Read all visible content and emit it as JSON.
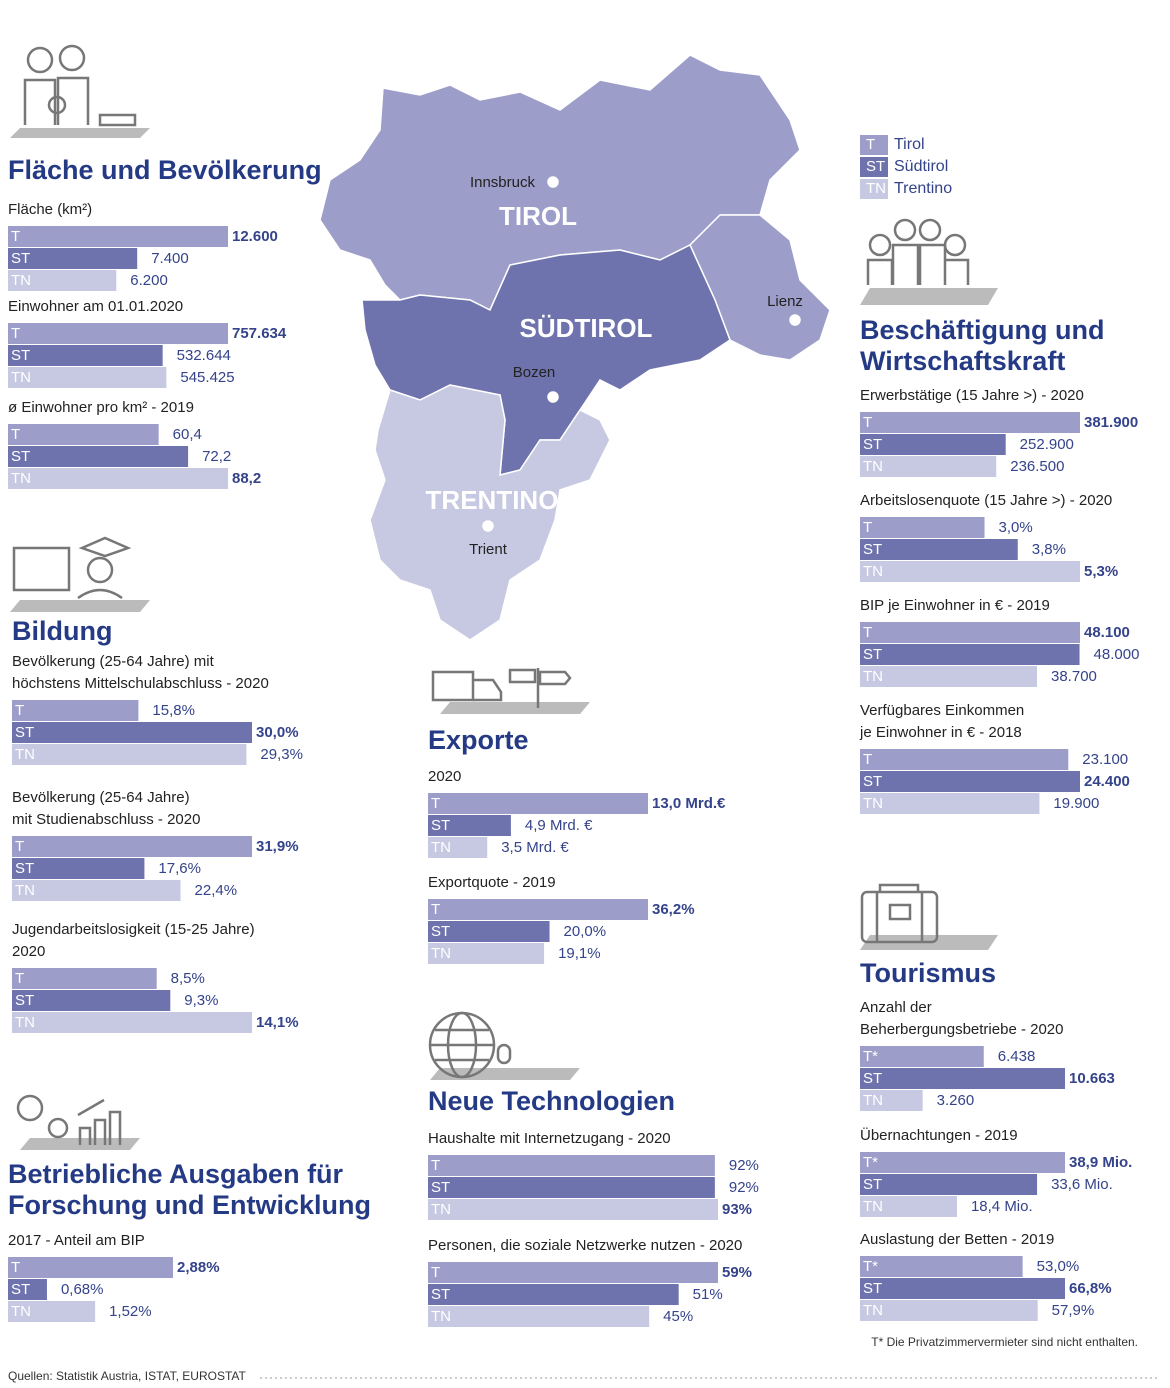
{
  "legend": [
    {
      "code": "T",
      "name": "Tirol"
    },
    {
      "code": "ST",
      "name": "Südtirol"
    },
    {
      "code": "TN",
      "name": "Trentino"
    }
  ],
  "colors": [
    "#9c9ec9",
    "#6f73ad",
    "#c7c8e1"
  ],
  "map": {
    "regions": [
      "TIROL",
      "SÜDTIROL",
      "TRENTINO"
    ],
    "cities": [
      "Innsbruck",
      "Lienz",
      "Bozen",
      "Trient"
    ]
  },
  "sections": [
    {
      "title": [
        "Fläche und Bevölkerung"
      ],
      "charts": [
        {
          "label": [
            "Fläche (km²)"
          ],
          "categories": [
            "T",
            "ST",
            "TN"
          ],
          "values": [
            12600,
            7400,
            6200
          ],
          "value_labels": [
            "12.600",
            "7.400",
            "6.200"
          ]
        },
        {
          "label": [
            "Einwohner am 01.01.2020"
          ],
          "categories": [
            "T",
            "ST",
            "TN"
          ],
          "values": [
            757634,
            532644,
            545425
          ],
          "value_labels": [
            "757.634",
            "532.644",
            "545.425"
          ]
        },
        {
          "label": [
            "ø Einwohner pro km² - 2019"
          ],
          "categories": [
            "T",
            "ST",
            "TN"
          ],
          "values": [
            60.4,
            72.2,
            88.2
          ],
          "value_labels": [
            "60,4",
            "72,2",
            "88,2"
          ]
        }
      ]
    },
    {
      "title": [
        "Bildung"
      ],
      "charts": [
        {
          "label": [
            "Bevölkerung (25-64 Jahre) mit",
            "höchstens Mittelschulabschluss - 2020"
          ],
          "categories": [
            "T",
            "ST",
            "TN"
          ],
          "values": [
            15.8,
            30.0,
            29.3
          ],
          "value_labels": [
            "15,8%",
            "30,0%",
            "29,3%"
          ]
        },
        {
          "label": [
            "Bevölkerung (25-64 Jahre)",
            "mit Studienabschluss  - 2020"
          ],
          "categories": [
            "T",
            "ST",
            "TN"
          ],
          "values": [
            31.9,
            17.6,
            22.4
          ],
          "value_labels": [
            "31,9%",
            "17,6%",
            "22,4%"
          ]
        },
        {
          "label": [
            "Jugendarbeitslosigkeit (15-25 Jahre)",
            "2020"
          ],
          "categories": [
            "T",
            "ST",
            "TN"
          ],
          "values": [
            8.5,
            9.3,
            14.1
          ],
          "value_labels": [
            "8,5%",
            "9,3%",
            "14,1%"
          ]
        }
      ]
    },
    {
      "title": [
        "Betriebliche Ausgaben für",
        "Forschung und Entwicklung"
      ],
      "charts": [
        {
          "label": [
            "2017 - Anteil am BIP"
          ],
          "categories": [
            "T",
            "ST",
            "TN"
          ],
          "values": [
            2.88,
            0.68,
            1.52
          ],
          "value_labels": [
            "2,88%",
            "0,68%",
            "1,52%"
          ]
        }
      ]
    },
    {
      "title": [
        "Exporte"
      ],
      "charts": [
        {
          "label": [
            "2020"
          ],
          "categories": [
            "T",
            "ST",
            "TN"
          ],
          "values": [
            13.0,
            4.9,
            3.5
          ],
          "value_labels": [
            "13,0 Mrd.€",
            "4,9 Mrd. €",
            "3,5 Mrd. €"
          ]
        },
        {
          "label": [
            "Exportquote - 2019"
          ],
          "categories": [
            "T",
            "ST",
            "TN"
          ],
          "values": [
            36.2,
            20.0,
            19.1
          ],
          "value_labels": [
            "36,2%",
            "20,0%",
            "19,1%"
          ]
        }
      ]
    },
    {
      "title": [
        "Neue Technologien"
      ],
      "charts": [
        {
          "label": [
            "Haushalte mit Internetzugang - 2020"
          ],
          "categories": [
            "T",
            "ST",
            "TN"
          ],
          "values": [
            92,
            92,
            93
          ],
          "value_labels": [
            "92%",
            "92%",
            "93%"
          ]
        },
        {
          "label": [
            "Personen, die soziale Netzwerke nutzen - 2020"
          ],
          "categories": [
            "T",
            "ST",
            "TN"
          ],
          "values": [
            59,
            51,
            45
          ],
          "value_labels": [
            "59%",
            "51%",
            "45%"
          ]
        }
      ]
    },
    {
      "title": [
        "Beschäftigung und",
        "Wirtschaftskraft"
      ],
      "charts": [
        {
          "label": [
            "Erwerbstätige (15 Jahre >) - 2020"
          ],
          "categories": [
            "T",
            "ST",
            "TN"
          ],
          "values": [
            381900,
            252900,
            236500
          ],
          "value_labels": [
            "381.900",
            "252.900",
            "236.500"
          ]
        },
        {
          "label": [
            "Arbeitslosenquote (15 Jahre >) - 2020"
          ],
          "categories": [
            "T",
            "ST",
            "TN"
          ],
          "values": [
            3.0,
            3.8,
            5.3
          ],
          "value_labels": [
            "3,0%",
            "3,8%",
            "5,3%"
          ]
        },
        {
          "label": [
            "BIP  je Einwohner in € - 2019"
          ],
          "categories": [
            "T",
            "ST",
            "TN"
          ],
          "values": [
            48100,
            48000,
            38700
          ],
          "value_labels": [
            "48.100",
            "48.000",
            "38.700"
          ]
        },
        {
          "label": [
            "Verfügbares Einkommen",
            "je Einwohner in € - 2018"
          ],
          "categories": [
            "T",
            "ST",
            "TN"
          ],
          "values": [
            23100,
            24400,
            19900
          ],
          "value_labels": [
            "23.100",
            "24.400",
            "19.900"
          ]
        }
      ]
    },
    {
      "title": [
        "Tourismus"
      ],
      "charts": [
        {
          "label": [
            "Anzahl der",
            "Beherbergungsbetriebe - 2020"
          ],
          "categories": [
            "T*",
            "ST",
            "TN"
          ],
          "values": [
            6438,
            10663,
            3260
          ],
          "value_labels": [
            "6.438",
            "10.663",
            "3.260"
          ]
        },
        {
          "label": [
            "Übernachtungen - 2019"
          ],
          "categories": [
            "T*",
            "ST",
            "TN"
          ],
          "values": [
            38.9,
            33.6,
            18.4
          ],
          "value_labels": [
            "38,9 Mio.",
            "33,6 Mio.",
            "18,4 Mio."
          ]
        },
        {
          "label": [
            "Auslastung der Betten - 2019"
          ],
          "categories": [
            "T*",
            "ST",
            "TN"
          ],
          "values": [
            53.0,
            66.8,
            57.9
          ],
          "value_labels": [
            "53,0%",
            "66,8%",
            "57,9%"
          ]
        }
      ]
    }
  ],
  "footnote": "T* Die Privatzimmervermieter sind nicht enthalten.",
  "source": "Quellen: Statistik Austria, ISTAT, EUROSTAT"
}
